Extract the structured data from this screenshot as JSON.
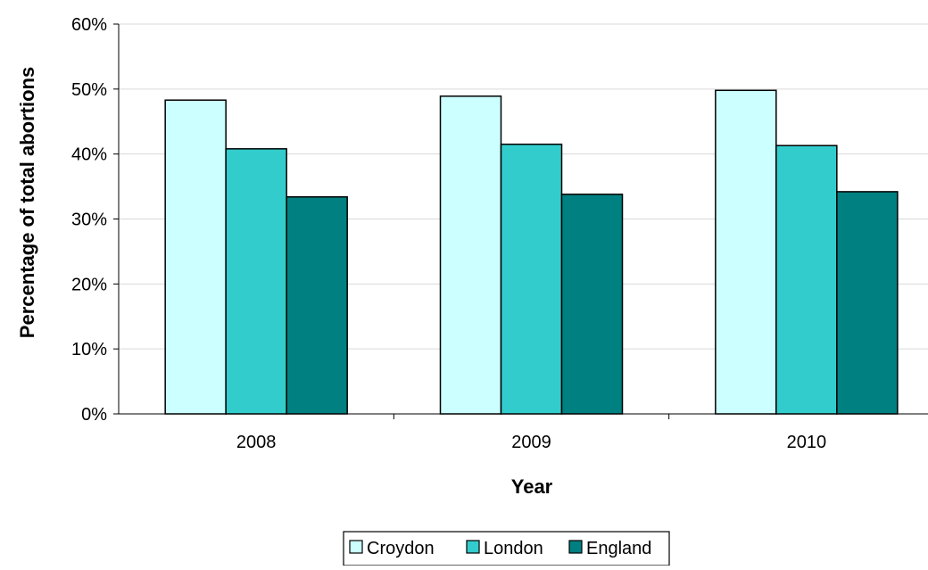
{
  "chart_data": {
    "type": "bar",
    "title": "",
    "xlabel": "Year",
    "ylabel": "Percentage of total abortions",
    "categories": [
      "2008",
      "2009",
      "2010"
    ],
    "series": [
      {
        "name": "Croydon",
        "values": [
          48.3,
          48.9,
          49.8
        ],
        "color": "#ccffff"
      },
      {
        "name": "London",
        "values": [
          40.8,
          41.5,
          41.3
        ],
        "color": "#33cccc"
      },
      {
        "name": "England",
        "values": [
          33.4,
          33.8,
          34.2
        ],
        "color": "#008080"
      }
    ],
    "ylim": [
      0,
      60
    ],
    "yticks": [
      0,
      10,
      20,
      30,
      40,
      50,
      60
    ],
    "ytick_labels": [
      "0%",
      "10%",
      "20%",
      "30%",
      "40%",
      "50%",
      "60%"
    ],
    "grid": true,
    "legend_position": "bottom"
  }
}
